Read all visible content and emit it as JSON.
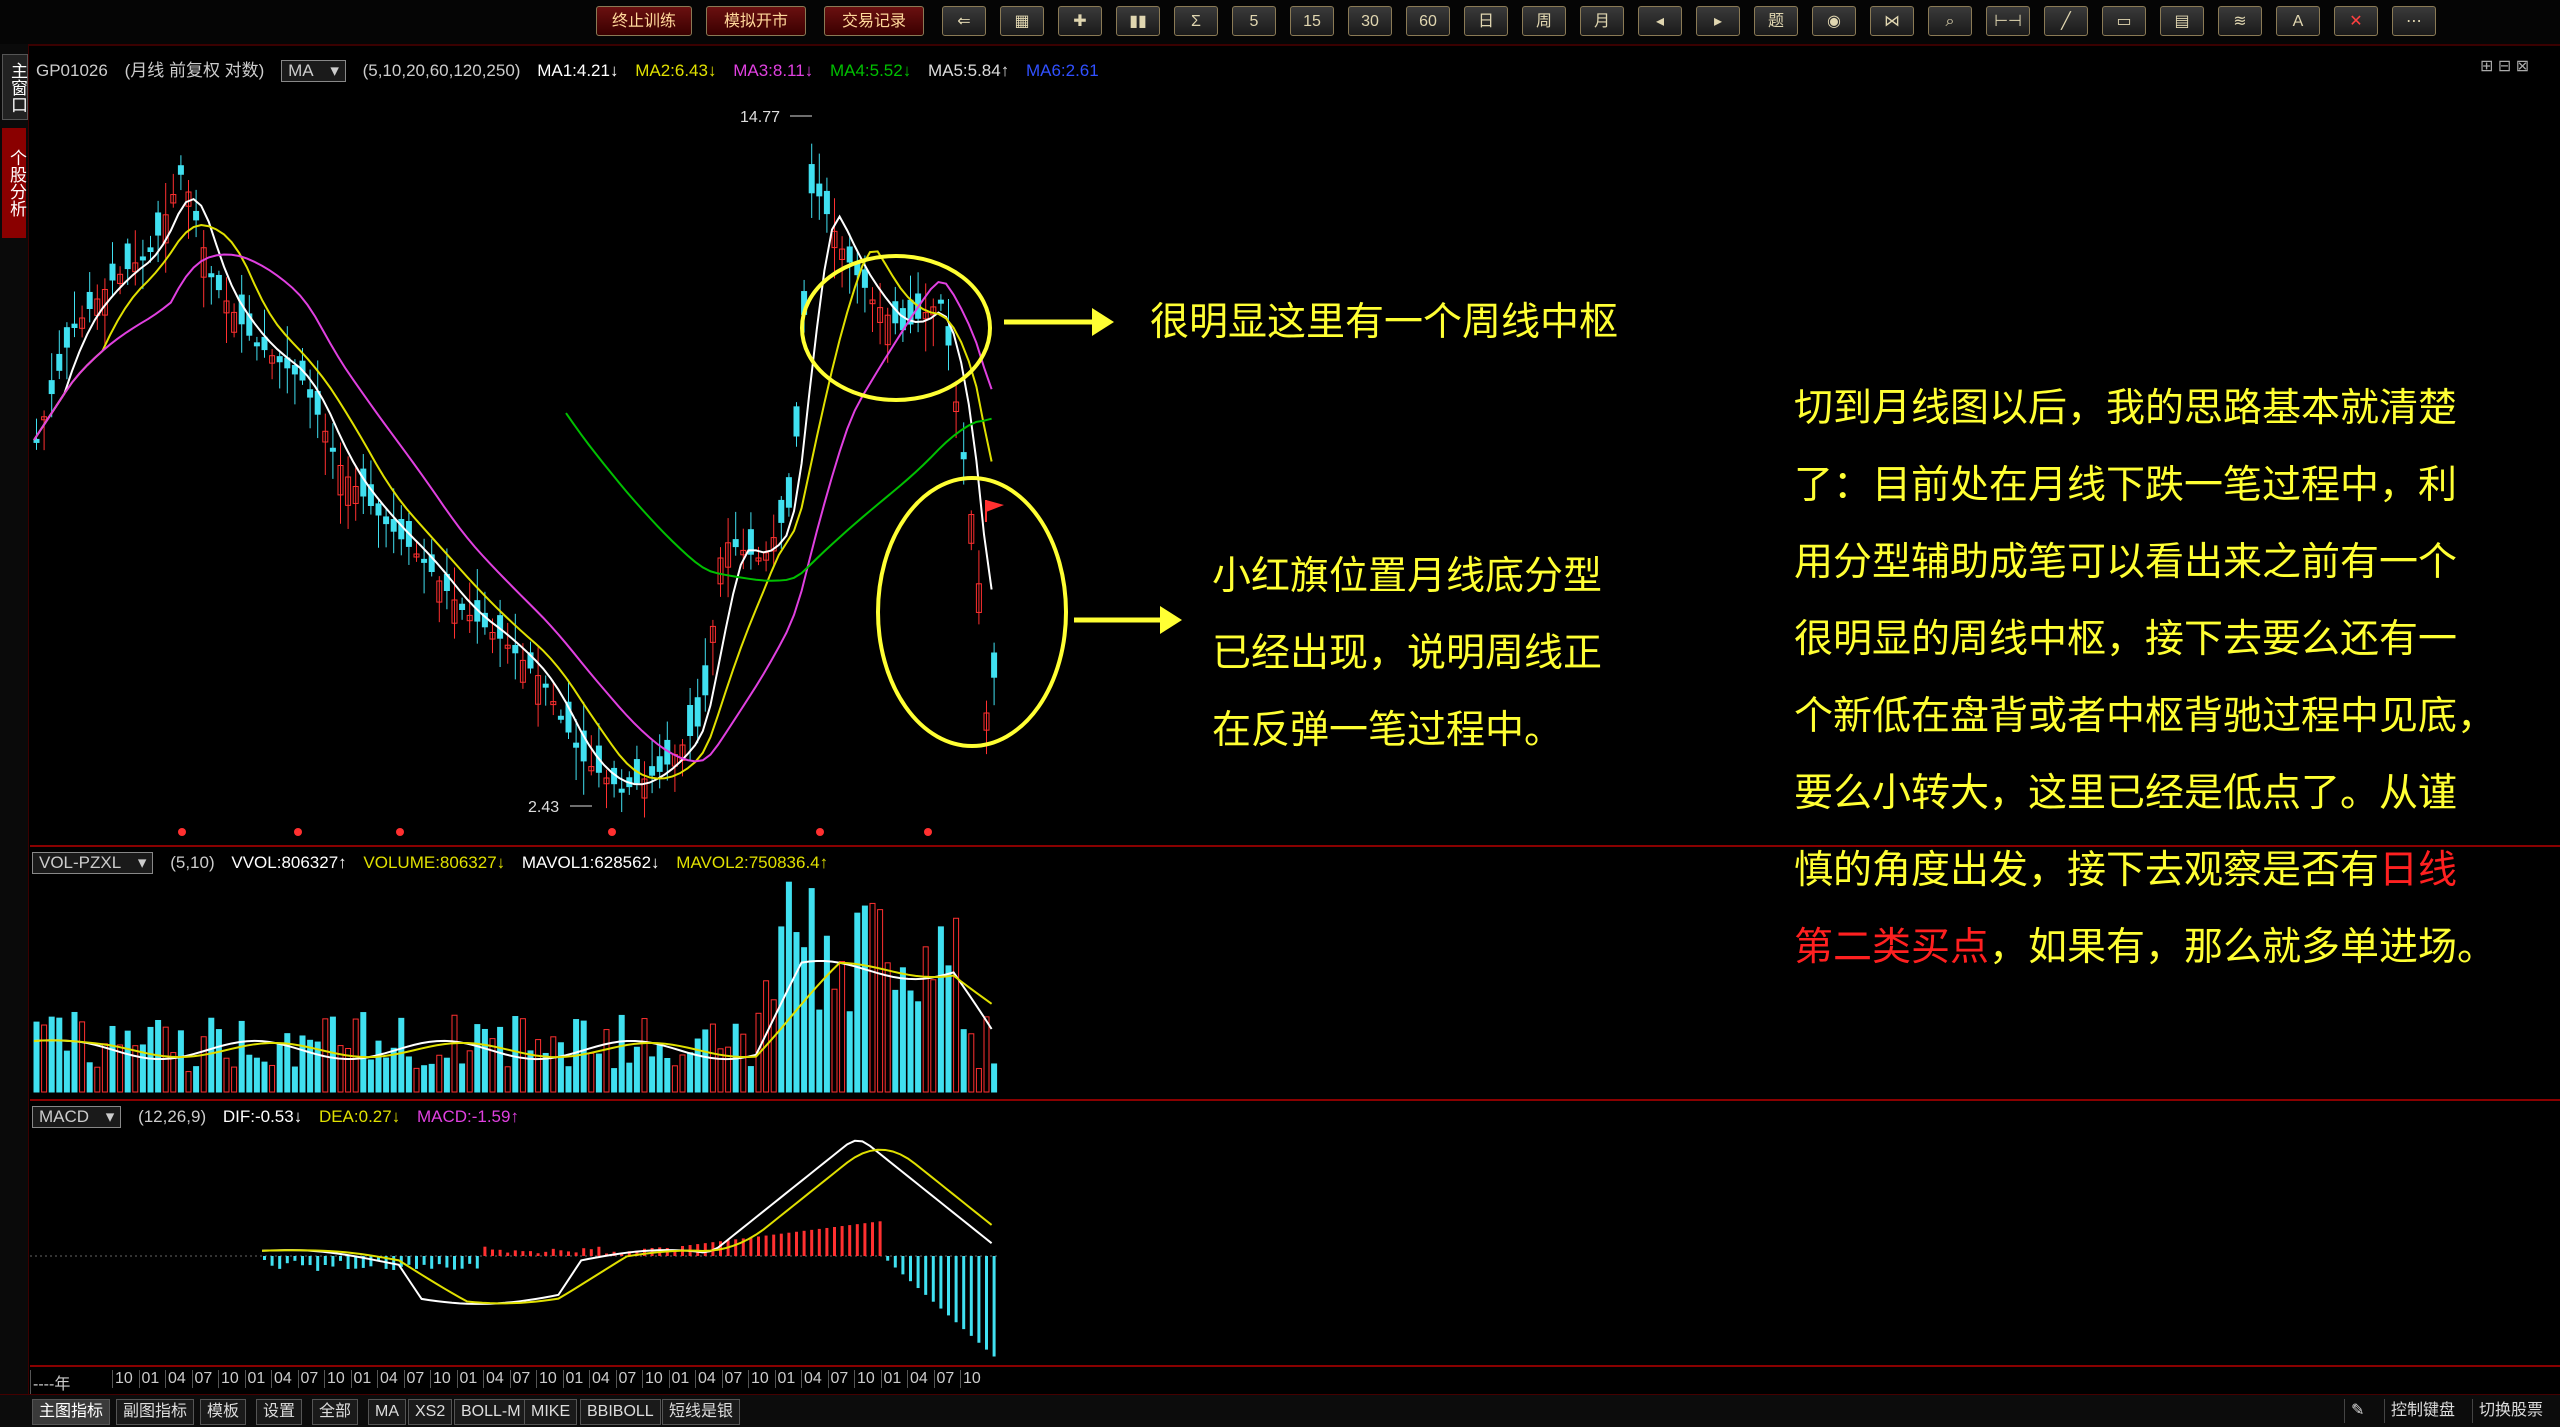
{
  "toolbar": {
    "buttons": [
      "终止训练",
      "模拟开市",
      "交易记录"
    ],
    "icons": [
      "back-arrow-icon",
      "grid-icon",
      "cross-icon",
      "candle-icon",
      "sigma-icon",
      "5",
      "15",
      "30",
      "60",
      "日",
      "周",
      "月",
      "prev-icon",
      "next-icon",
      "题",
      "eye-icon",
      "bowtie-icon",
      "magnify-icon",
      "range-icon",
      "line-icon",
      "rect-icon",
      "grid2-icon",
      "fib-icon",
      "A",
      "close-x-icon",
      "more-icon"
    ]
  },
  "left_tabs": [
    "主窗口",
    "个股分析"
  ],
  "main_info": {
    "code": "GP01026",
    "period": "(月线 前复权 对数)",
    "indicator": "MA",
    "params": "(5,10,20,60,120,250)",
    "ma1": "MA1:4.21↓",
    "ma2": "MA2:6.43↓",
    "ma3": "MA3:8.11↓",
    "ma4": "MA4:5.52↓",
    "ma5": "MA5:5.84↑",
    "ma6": "MA6:2.61"
  },
  "vol_info": {
    "indicator": "VOL-PZXL",
    "params": "(5,10)",
    "vvol": "VVOL:806327↑",
    "volume": "VOLUME:806327↓",
    "mavol1": "MAVOL1:628562↓",
    "mavol2": "MAVOL2:750836.4↑"
  },
  "macd_info": {
    "indicator": "MACD",
    "params": "(12,26,9)",
    "dif": "DIF:-0.53↓",
    "dea": "DEA:0.27↓",
    "macd": "MACD:-1.59↑"
  },
  "price_labels": {
    "high": "14.77",
    "low": "2.43"
  },
  "annotations": {
    "note1": "很明显这里有一个周线中枢",
    "note2_lines": [
      "小红旗位置月线底分型",
      "已经出现，说明周线正",
      "在反弹一笔过程中。"
    ],
    "note3_lines": [
      "切到月线图以后，我的思路基本就清楚",
      "了：目前处在月线下跌一笔过程中，利",
      "用分型辅助成笔可以看出来之前有一个",
      "很明显的周线中枢，接下去要么还有一",
      "个新低在盘背或者中枢背驰过程中见底，",
      "要么小转大，这里已经是低点了。从谨"
    ],
    "note3_line7_pre": "慎的角度出发，接下去观察是否有",
    "note3_line7_red": "日线",
    "note3_line8_red": "第二类买点",
    "note3_line8_post": "，如果有，那么就多单进场。"
  },
  "time_axis": [
    "----年",
    "10",
    "01",
    "04",
    "07",
    "10",
    "01",
    "04",
    "07",
    "10",
    "01",
    "04",
    "07",
    "10",
    "01",
    "04",
    "07",
    "10",
    "01",
    "04",
    "07",
    "10",
    "01",
    "04",
    "07",
    "10",
    "01",
    "04",
    "07",
    "10",
    "01",
    "04",
    "07",
    "10"
  ],
  "bottom_tabs": [
    "主图指标",
    "副图指标",
    "模板",
    "设置",
    "全部",
    "MA",
    "XS2",
    "BOLL-M",
    "MIKE",
    "BBIBOLL",
    "短线是银"
  ],
  "bottom_right": [
    "控制键盘",
    "切换股票"
  ],
  "colors": {
    "up": "#ff3030",
    "down": "#40e0f0",
    "ma1": "#ffffff",
    "ma2": "#e0e000",
    "ma3": "#e040e0",
    "ma4": "#00c000",
    "annot": "#ffff33"
  }
}
